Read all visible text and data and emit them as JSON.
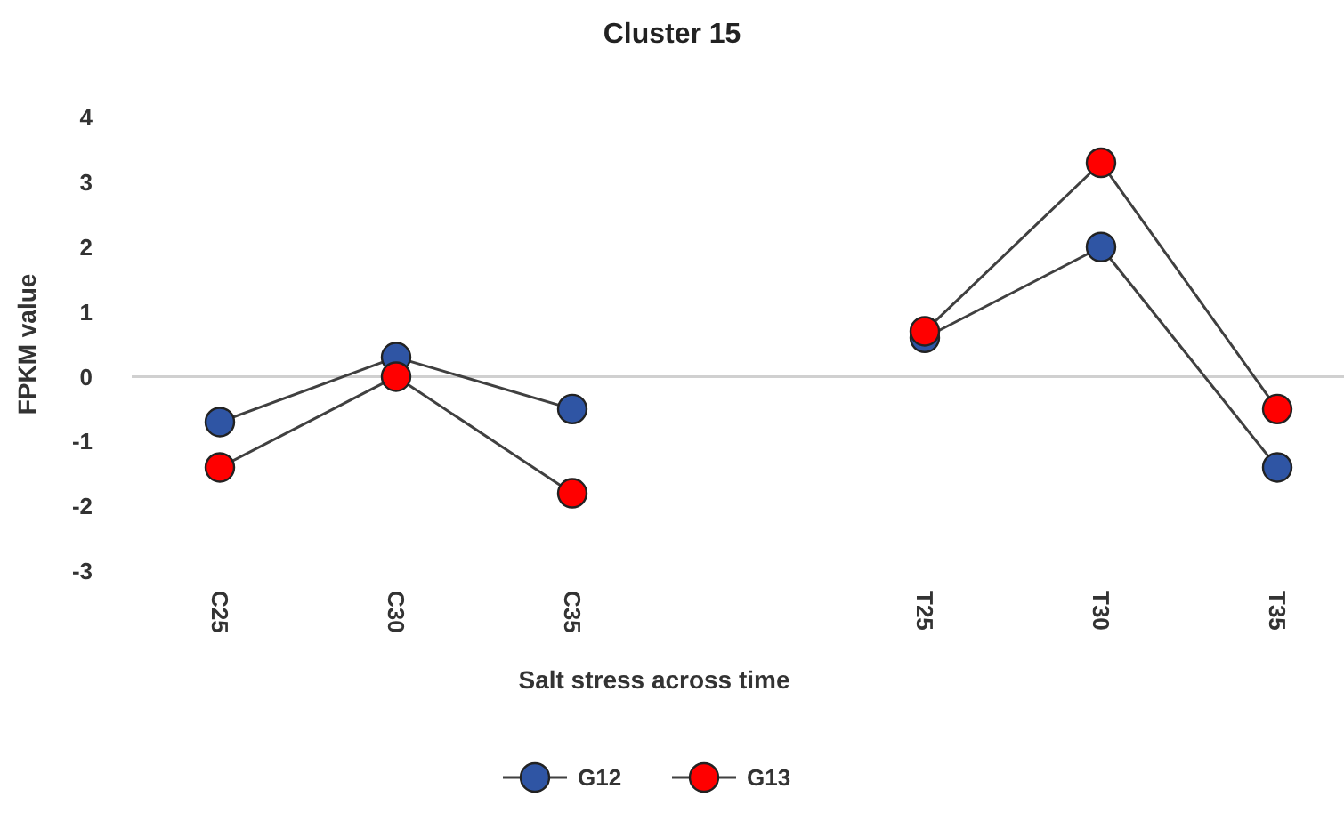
{
  "chart_data": {
    "type": "line",
    "title": "Cluster 15",
    "xlabel": "Salt stress across time",
    "ylabel": "FPKM value",
    "categories": [
      "C25",
      "C30",
      "C35",
      null,
      "T25",
      "T30",
      "T35"
    ],
    "series": [
      {
        "name": "G12",
        "color": "#2f55a4",
        "values": [
          -0.7,
          0.3,
          -0.5,
          null,
          0.6,
          2.0,
          -1.4
        ]
      },
      {
        "name": "G13",
        "color": "#ff0000",
        "values": [
          -1.4,
          0,
          -1.8,
          null,
          0.7,
          3.3,
          -0.5
        ]
      }
    ],
    "ylim": [
      -3,
      4
    ],
    "yticks": [
      -3,
      -2,
      -1,
      0,
      1,
      2,
      3,
      4
    ],
    "marker": "circle",
    "legend": "bottom",
    "ref_lines": [
      {
        "axis": "y",
        "value": 0,
        "color": "#d0d0d0"
      }
    ]
  }
}
